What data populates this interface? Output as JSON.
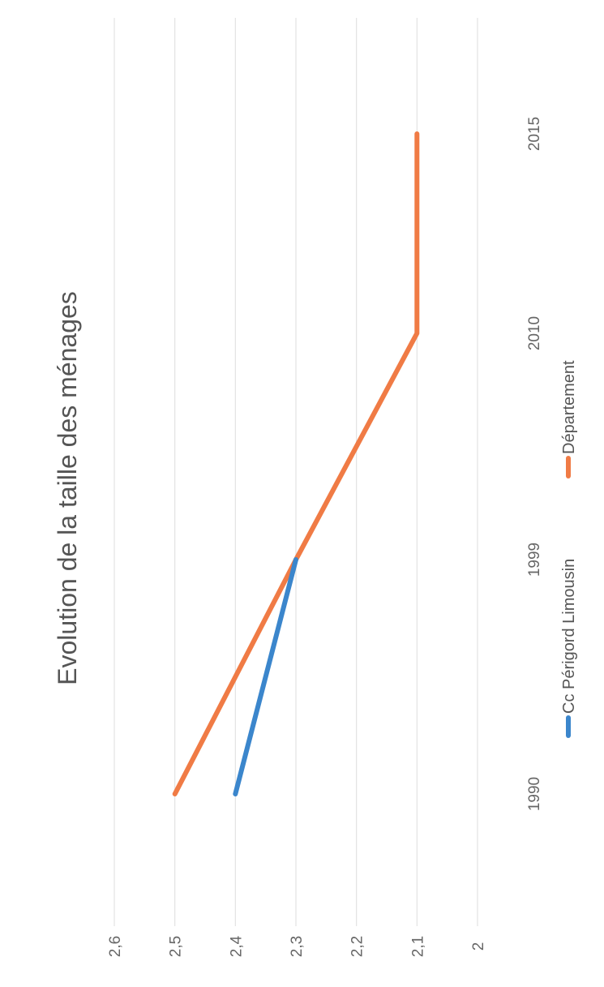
{
  "chart_data": {
    "type": "line",
    "title": "Evolution de la taille des ménages",
    "categories": [
      "1990",
      "1999",
      "2010",
      "2015"
    ],
    "yticks": [
      "2",
      "2,1",
      "2,2",
      "2,3",
      "2,4",
      "2,5",
      "2,6"
    ],
    "ylim": [
      2,
      2.6
    ],
    "grid": true,
    "legend_position": "bottom",
    "orientation": "rotated 90° counter-clockwise",
    "series": [
      {
        "name": "Cc Périgord Limousin",
        "color": "#3b86cc",
        "values": [
          2.4,
          2.3,
          null,
          null
        ]
      },
      {
        "name": "Département",
        "color": "#f07b45",
        "values": [
          2.5,
          2.3,
          2.1,
          2.1
        ]
      }
    ]
  }
}
